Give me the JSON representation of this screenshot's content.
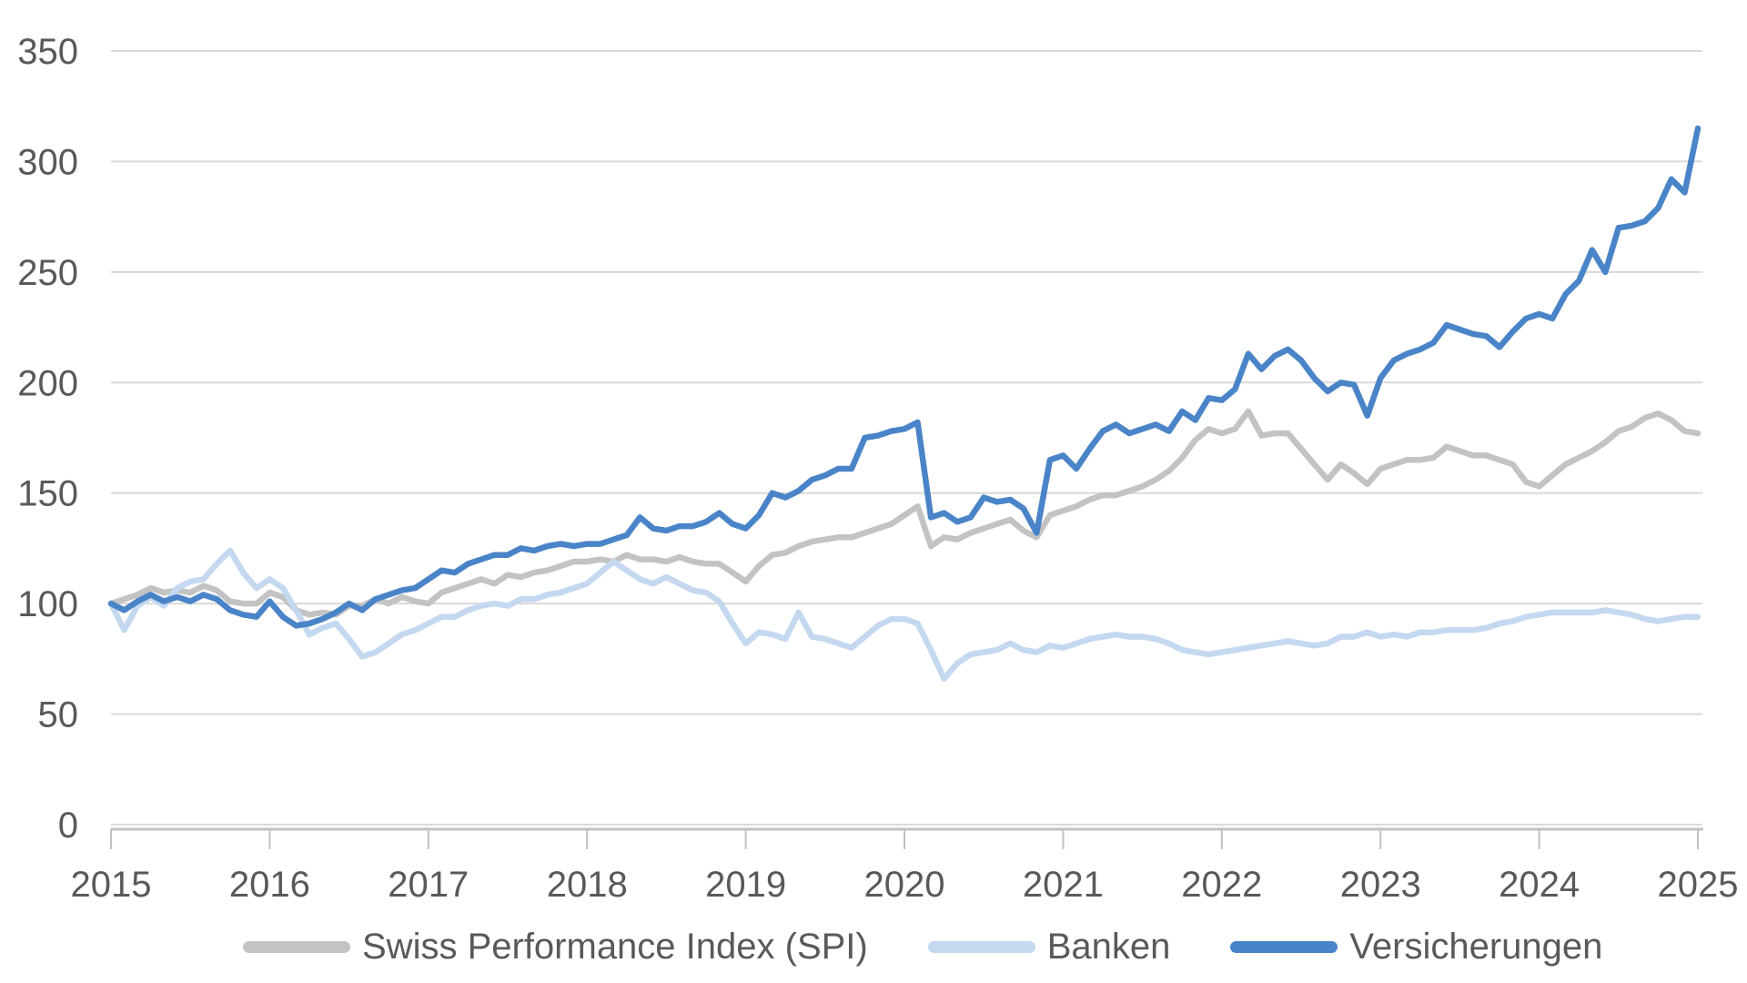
{
  "chart_data": {
    "type": "line",
    "title": "",
    "xlabel": "",
    "ylabel": "",
    "grid": true,
    "legend_position": "bottom",
    "x_axis": {
      "start_year": 2015,
      "end_year": 2025,
      "step_per_point_months": 1,
      "tick_labels": [
        "2015",
        "2016",
        "2017",
        "2018",
        "2019",
        "2020",
        "2021",
        "2022",
        "2023",
        "2024",
        "2025"
      ]
    },
    "y_axis": {
      "min": 0,
      "max": 350,
      "tick_step": 50,
      "tick_labels": [
        "0",
        "50",
        "100",
        "150",
        "200",
        "250",
        "300",
        "350"
      ]
    },
    "series": [
      {
        "name": "Swiss Performance Index (SPI)",
        "color": "#c3c3c3",
        "values": [
          100,
          102,
          104,
          107,
          105,
          106,
          105,
          108,
          106,
          101,
          100,
          100,
          105,
          103,
          97,
          95,
          96,
          95,
          99,
          99,
          102,
          100,
          103,
          101,
          100,
          105,
          107,
          109,
          111,
          109,
          113,
          112,
          114,
          115,
          117,
          119,
          119,
          120,
          119,
          122,
          120,
          120,
          119,
          121,
          119,
          118,
          118,
          114,
          110,
          117,
          122,
          123,
          126,
          128,
          129,
          130,
          130,
          132,
          134,
          136,
          140,
          144,
          126,
          130,
          129,
          132,
          134,
          136,
          138,
          133,
          130,
          140,
          142,
          144,
          147,
          149,
          149,
          151,
          153,
          156,
          160,
          166,
          174,
          179,
          177,
          179,
          187,
          176,
          177,
          177,
          170,
          163,
          156,
          163,
          159,
          154,
          161,
          163,
          165,
          165,
          166,
          171,
          169,
          167,
          167,
          165,
          163,
          155,
          153,
          158,
          163,
          166,
          169,
          173,
          178,
          180,
          184,
          186,
          183,
          178,
          177
        ]
      },
      {
        "name": "Banken",
        "color": "#c4d8f0",
        "values": [
          100,
          88,
          99,
          103,
          99,
          107,
          110,
          111,
          118,
          124,
          114,
          107,
          111,
          107,
          97,
          86,
          89,
          91,
          84,
          76,
          78,
          82,
          86,
          88,
          91,
          94,
          94,
          97,
          99,
          100,
          99,
          102,
          102,
          104,
          105,
          107,
          109,
          114,
          119,
          115,
          111,
          109,
          112,
          109,
          106,
          105,
          101,
          91,
          82,
          87,
          86,
          84,
          96,
          85,
          84,
          82,
          80,
          85,
          90,
          93,
          93,
          91,
          79,
          66,
          73,
          77,
          78,
          79,
          82,
          79,
          78,
          81,
          80,
          82,
          84,
          85,
          86,
          85,
          85,
          84,
          82,
          79,
          78,
          77,
          78,
          79,
          80,
          81,
          82,
          83,
          82,
          81,
          82,
          85,
          85,
          87,
          85,
          86,
          85,
          87,
          87,
          88,
          88,
          88,
          89,
          91,
          92,
          94,
          95,
          96,
          96,
          96,
          96,
          97,
          96,
          95,
          93,
          92,
          93,
          94,
          94
        ]
      },
      {
        "name": "Versicherungen",
        "color": "#4a84c8",
        "values": [
          100,
          97,
          101,
          104,
          101,
          103,
          101,
          104,
          102,
          97,
          95,
          94,
          101,
          94,
          90,
          91,
          93,
          96,
          100,
          97,
          102,
          104,
          106,
          107,
          111,
          115,
          114,
          118,
          120,
          122,
          122,
          125,
          124,
          126,
          127,
          126,
          127,
          127,
          129,
          131,
          139,
          134,
          133,
          135,
          135,
          137,
          141,
          136,
          134,
          140,
          150,
          148,
          151,
          156,
          158,
          161,
          161,
          175,
          176,
          178,
          179,
          182,
          139,
          141,
          137,
          139,
          148,
          146,
          147,
          143,
          132,
          165,
          167,
          161,
          170,
          178,
          181,
          177,
          179,
          181,
          178,
          187,
          183,
          193,
          192,
          197,
          213,
          206,
          212,
          215,
          210,
          202,
          196,
          200,
          199,
          185,
          202,
          210,
          213,
          215,
          218,
          226,
          224,
          222,
          221,
          216,
          223,
          229,
          231,
          229,
          240,
          246,
          260,
          250,
          270,
          271,
          273,
          279,
          292,
          286,
          315
        ]
      }
    ]
  },
  "style": {
    "grid_color": "#d9d9d9",
    "axis_color": "#c1c1c1",
    "label_color": "#595959",
    "background": "#ffffff",
    "line_width": 6.5,
    "label_font_size": 40
  },
  "legend": {
    "items": [
      {
        "label": "Swiss Performance Index (SPI)"
      },
      {
        "label": "Banken"
      },
      {
        "label": "Versicherungen"
      }
    ]
  }
}
